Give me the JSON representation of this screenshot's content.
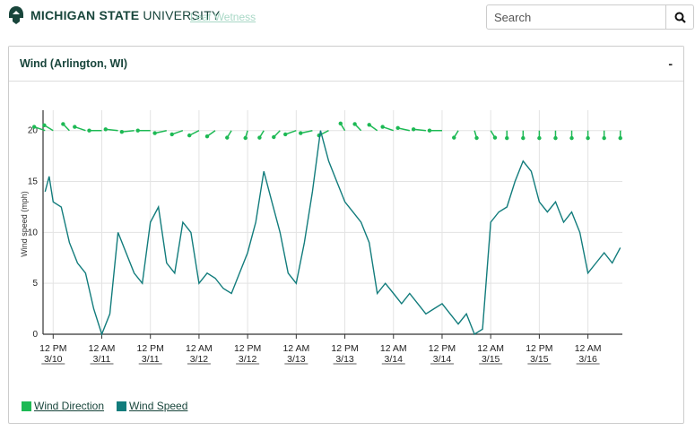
{
  "header": {
    "logo_bold": "MICHIGAN STATE",
    "logo_light": " UNIVERSITY",
    "ghost_link": "Leaf Wetness",
    "search_placeholder": "Search"
  },
  "panel": {
    "title": "Wind (Arlington, WI)",
    "collapse": "-"
  },
  "colors": {
    "direction": "#1db954",
    "speed": "#127c7c",
    "brand": "#18453b"
  },
  "chart_data": {
    "type": "line",
    "ylabel": "Wind speed (mph)",
    "ylim": [
      0,
      22
    ],
    "yticks": [
      0,
      5,
      10,
      15,
      20
    ],
    "xtick_labels": [
      [
        "12 PM",
        "3/10"
      ],
      [
        "12 AM",
        "3/11"
      ],
      [
        "12 PM",
        "3/11"
      ],
      [
        "12 AM",
        "3/12"
      ],
      [
        "12 PM",
        "3/12"
      ],
      [
        "12 AM",
        "3/13"
      ],
      [
        "12 PM",
        "3/13"
      ],
      [
        "12 AM",
        "3/14"
      ],
      [
        "12 PM",
        "3/14"
      ],
      [
        "12 AM",
        "3/15"
      ],
      [
        "12 PM",
        "3/15"
      ],
      [
        "12 AM",
        "3/16"
      ]
    ],
    "xtick_hours": [
      0,
      12,
      24,
      36,
      48,
      60,
      72,
      84,
      96,
      108,
      120,
      132
    ],
    "xrange_hours": [
      -2.5,
      140.5
    ],
    "grid": true,
    "legend_position": "bottom-left",
    "series": [
      {
        "name": "Wind Speed",
        "x_hours": [
          -2,
          -1,
          0,
          2,
          4,
          6,
          8,
          10,
          12,
          14,
          16,
          18,
          20,
          22,
          24,
          26,
          28,
          30,
          32,
          34,
          36,
          38,
          40,
          42,
          44,
          46,
          48,
          50,
          52,
          54,
          56,
          58,
          60,
          62,
          64,
          66,
          68,
          70,
          72,
          74,
          76,
          78,
          80,
          82,
          84,
          86,
          88,
          90,
          92,
          94,
          96,
          98,
          100,
          102,
          104,
          106,
          108,
          110,
          112,
          114,
          116,
          118,
          120,
          122,
          124,
          126,
          128,
          130,
          132,
          134,
          136,
          138,
          140
        ],
        "values": [
          14,
          15.5,
          13,
          12.5,
          9,
          7,
          6,
          2.5,
          0,
          2,
          10,
          8,
          6,
          5,
          11,
          12.5,
          7,
          6,
          11,
          10,
          5,
          6,
          5.5,
          4.5,
          4,
          6,
          8,
          11,
          16,
          13,
          10,
          6,
          5,
          9,
          14,
          20,
          17,
          15,
          13,
          12,
          11,
          9,
          4,
          5,
          4,
          3,
          4,
          3,
          2,
          2.5,
          3,
          2,
          1,
          2,
          0,
          0.5,
          11,
          12,
          12.5,
          15,
          17,
          16,
          13,
          12,
          13,
          11,
          12,
          10,
          6,
          7,
          8,
          7,
          8.5
        ]
      },
      {
        "name": "Wind Direction",
        "x_hours": [
          -2,
          0,
          4,
          8,
          12,
          16,
          20,
          24,
          28,
          32,
          36,
          40,
          44,
          48,
          52,
          56,
          60,
          64,
          68,
          72,
          76,
          80,
          84,
          88,
          92,
          96,
          100,
          104,
          108,
          112,
          116,
          120,
          124,
          128,
          132,
          136,
          140
        ],
        "degrees": [
          300,
          315,
          330,
          300,
          270,
          280,
          260,
          270,
          250,
          240,
          230,
          220,
          200,
          190,
          200,
          210,
          240,
          250,
          230,
          340,
          330,
          320,
          300,
          290,
          280,
          270,
          200,
          170,
          160,
          180,
          180,
          180,
          180,
          180,
          180,
          180,
          180
        ]
      }
    ]
  },
  "legend": {
    "direction": "Wind Direction",
    "speed": "Wind Speed"
  }
}
